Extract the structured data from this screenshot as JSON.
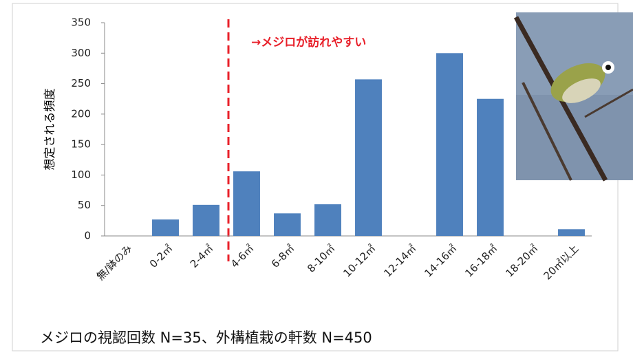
{
  "chart_data": {
    "type": "bar",
    "ylabel": "想定される頻度",
    "annotation": "→メジロが訪れやすい",
    "footnote": "メジロの視認回数 N=35、外構植栽の軒数 N=450",
    "categories": [
      "無/鉢のみ",
      "0-2㎡",
      "2-4㎡",
      "4-6㎡",
      "6-8㎡",
      "8-10㎡",
      "10-12㎡",
      "12-14㎡",
      "14-16㎡",
      "16-18㎡",
      "18-20㎡",
      "20㎡以上"
    ],
    "values": [
      0,
      27,
      51,
      106,
      37,
      52,
      257,
      0,
      300,
      225,
      0,
      11
    ],
    "color": "#4f81bd",
    "ylim": [
      0,
      350
    ],
    "yticks": [
      0,
      50,
      100,
      150,
      200,
      250,
      300,
      350
    ],
    "grid": false
  }
}
